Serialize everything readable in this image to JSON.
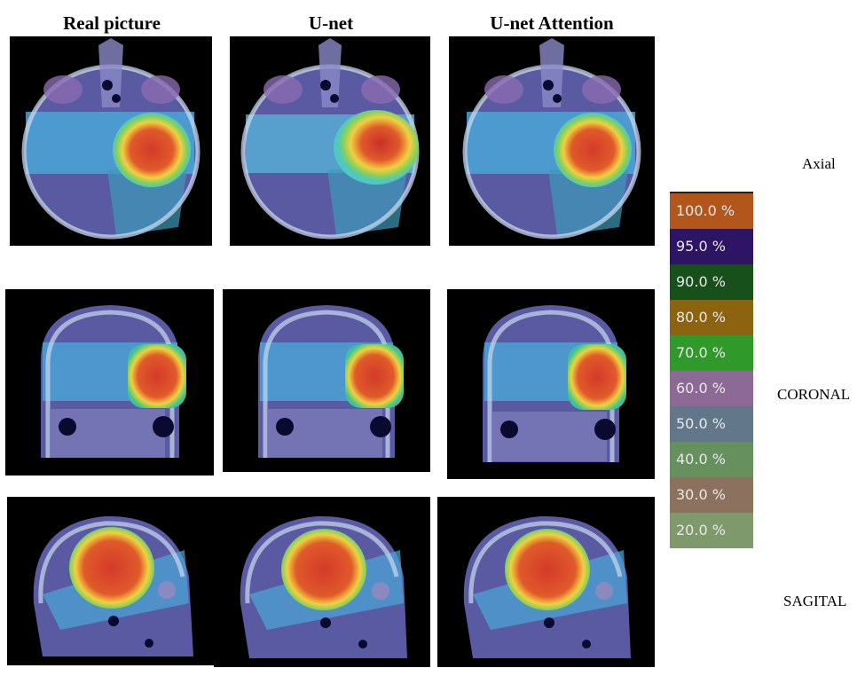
{
  "columns": [
    "Real picture",
    "U-net",
    "U-net Attention"
  ],
  "rows": [
    "Axial",
    "CORONAL",
    "SAGITAL"
  ],
  "legend": [
    {
      "label": "100.0 %",
      "color": "#b3561b"
    },
    {
      "label": "95.0 %",
      "color": "#2d1464"
    },
    {
      "label": "90.0 %",
      "color": "#17501b"
    },
    {
      "label": "80.0 %",
      "color": "#8c6410"
    },
    {
      "label": "70.0 %",
      "color": "#2f9a2a"
    },
    {
      "label": "60.0 %",
      "color": "#8c6a95"
    },
    {
      "label": "50.0 %",
      "color": "#62788a"
    },
    {
      "label": "40.0 %",
      "color": "#66905e"
    },
    {
      "label": "30.0 %",
      "color": "#8c725e"
    },
    {
      "label": "20.0 %",
      "color": "#7e9a6a"
    }
  ]
}
